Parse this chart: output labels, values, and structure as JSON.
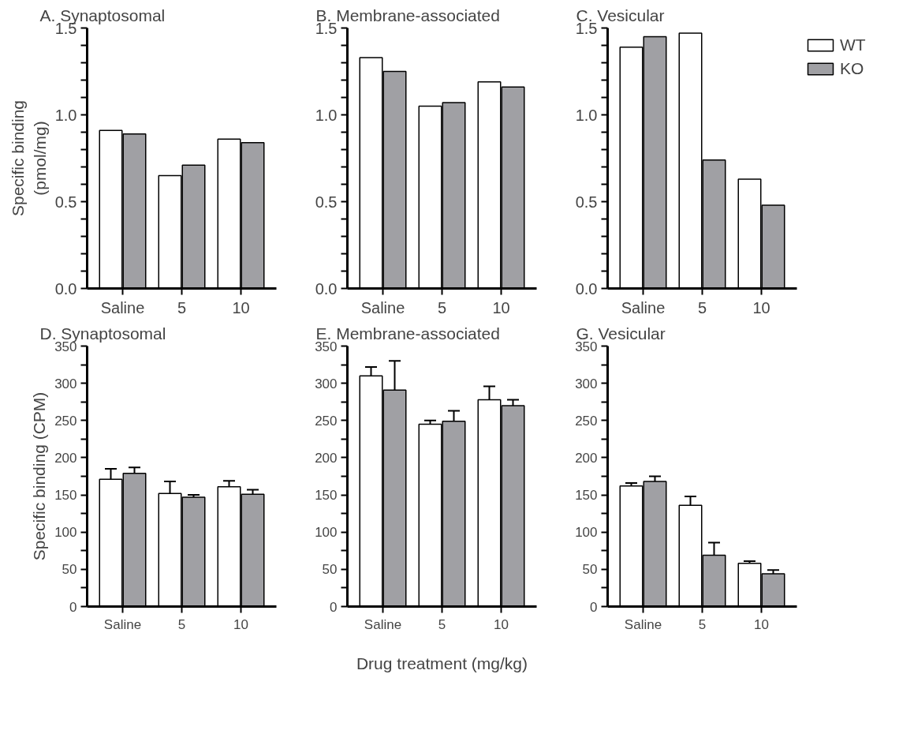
{
  "chart_data": [
    {
      "type": "bar",
      "title": "A. Synaptosomal",
      "ylabel": "Specific binding\n(pmol/mg)",
      "categories": [
        "Saline",
        "5",
        "10"
      ],
      "series": [
        {
          "color": "#ffffff",
          "values": [
            0.91,
            0.65,
            0.86
          ]
        },
        {
          "color": "#a0a0a4",
          "values": [
            0.89,
            0.71,
            0.84
          ]
        }
      ],
      "ylim": [
        0,
        1.5
      ],
      "yticks": [
        {
          "value": 0,
          "label": "0.0"
        },
        {
          "value": 0.1,
          "label": null
        },
        {
          "value": 0.2,
          "label": null
        },
        {
          "value": 0.3,
          "label": null
        },
        {
          "value": 0.4,
          "label": null
        },
        {
          "value": 0.5,
          "label": "0.5"
        },
        {
          "value": 0.6,
          "label": null
        },
        {
          "value": 0.7,
          "label": null
        },
        {
          "value": 0.8,
          "label": null
        },
        {
          "value": 0.9,
          "label": null
        },
        {
          "value": 1,
          "label": "1.0"
        },
        {
          "value": 1.1,
          "label": null
        },
        {
          "value": 1.2,
          "label": null
        },
        {
          "value": 1.3,
          "label": null
        },
        {
          "value": 1.4,
          "label": null
        },
        {
          "value": 1.5,
          "label": "1.5"
        }
      ],
      "grid": false,
      "legend": false
    },
    {
      "type": "bar",
      "title": "B. Membrane-associated",
      "categories": [
        "Saline",
        "5",
        "10"
      ],
      "series": [
        {
          "color": "#ffffff",
          "values": [
            1.33,
            1.05,
            1.19
          ]
        },
        {
          "color": "#a0a0a4",
          "values": [
            1.25,
            1.07,
            1.16
          ]
        }
      ],
      "ylim": [
        0,
        1.5
      ],
      "yticks": [
        {
          "value": 0,
          "label": "0.0"
        },
        {
          "value": 0.1,
          "label": null
        },
        {
          "value": 0.2,
          "label": null
        },
        {
          "value": 0.3,
          "label": null
        },
        {
          "value": 0.4,
          "label": null
        },
        {
          "value": 0.5,
          "label": "0.5"
        },
        {
          "value": 0.6,
          "label": null
        },
        {
          "value": 0.7,
          "label": null
        },
        {
          "value": 0.8,
          "label": null
        },
        {
          "value": 0.9,
          "label": null
        },
        {
          "value": 1,
          "label": "1.0"
        },
        {
          "value": 1.1,
          "label": null
        },
        {
          "value": 1.2,
          "label": null
        },
        {
          "value": 1.3,
          "label": null
        },
        {
          "value": 1.4,
          "label": null
        },
        {
          "value": 1.5,
          "label": "1.5"
        }
      ],
      "grid": false,
      "legend": false
    },
    {
      "type": "bar",
      "title": "C. Vesicular",
      "categories": [
        "Saline",
        "5",
        "10"
      ],
      "series": [
        {
          "name": "WT",
          "color": "#ffffff",
          "values": [
            1.39,
            1.47,
            0.63
          ]
        },
        {
          "name": "KO",
          "color": "#a0a0a4",
          "values": [
            1.45,
            0.74,
            0.48
          ]
        }
      ],
      "ylim": [
        0,
        1.5
      ],
      "yticks": [
        {
          "value": 0,
          "label": "0.0"
        },
        {
          "value": 0.1,
          "label": null
        },
        {
          "value": 0.2,
          "label": null
        },
        {
          "value": 0.3,
          "label": null
        },
        {
          "value": 0.4,
          "label": null
        },
        {
          "value": 0.5,
          "label": "0.5"
        },
        {
          "value": 0.6,
          "label": null
        },
        {
          "value": 0.7,
          "label": null
        },
        {
          "value": 0.8,
          "label": null
        },
        {
          "value": 0.9,
          "label": null
        },
        {
          "value": 1,
          "label": "1.0"
        },
        {
          "value": 1.1,
          "label": null
        },
        {
          "value": 1.2,
          "label": null
        },
        {
          "value": 1.3,
          "label": null
        },
        {
          "value": 1.4,
          "label": null
        },
        {
          "value": 1.5,
          "label": "1.5"
        }
      ],
      "grid": false,
      "legend": "top right"
    },
    {
      "type": "bar",
      "title": "D. Synaptosomal",
      "ylabel": "Specific binding (CPM)",
      "categories": [
        "Saline",
        "5",
        "10"
      ],
      "series": [
        {
          "color": "#ffffff",
          "values": [
            171,
            152,
            161
          ],
          "errors": [
            14,
            16,
            8
          ]
        },
        {
          "color": "#a0a0a4",
          "values": [
            179,
            147,
            151
          ],
          "errors": [
            8,
            3,
            6
          ]
        }
      ],
      "ylim": [
        0,
        350
      ],
      "yticks": [
        0,
        {
          "value": 25,
          "label": null
        },
        50,
        {
          "value": 75,
          "label": null
        },
        100,
        {
          "value": 125,
          "label": null
        },
        150,
        {
          "value": 175,
          "label": null
        },
        200,
        {
          "value": 225,
          "label": null
        },
        250,
        {
          "value": 275,
          "label": null
        },
        300,
        {
          "value": 325,
          "label": null
        },
        350
      ],
      "grid": false,
      "legend": false
    },
    {
      "type": "bar",
      "title": "E. Membrane-associated",
      "xlabel": "Drug treatment (mg/kg)",
      "categories": [
        "Saline",
        "5",
        "10"
      ],
      "series": [
        {
          "color": "#ffffff",
          "values": [
            310,
            245,
            278
          ],
          "errors": [
            12,
            5,
            18
          ]
        },
        {
          "color": "#a0a0a4",
          "values": [
            291,
            249,
            270
          ],
          "errors": [
            39,
            14,
            8
          ]
        }
      ],
      "ylim": [
        0,
        350
      ],
      "yticks": [
        0,
        {
          "value": 25,
          "label": null
        },
        50,
        {
          "value": 75,
          "label": null
        },
        100,
        {
          "value": 125,
          "label": null
        },
        150,
        {
          "value": 175,
          "label": null
        },
        200,
        {
          "value": 225,
          "label": null
        },
        250,
        {
          "value": 275,
          "label": null
        },
        300,
        {
          "value": 325,
          "label": null
        },
        350
      ],
      "grid": false,
      "legend": false
    },
    {
      "type": "bar",
      "title": "G. Vesicular",
      "categories": [
        "Saline",
        "5",
        "10"
      ],
      "series": [
        {
          "color": "#ffffff",
          "values": [
            162,
            136,
            58
          ],
          "errors": [
            4,
            12,
            3
          ]
        },
        {
          "color": "#a0a0a4",
          "values": [
            168,
            69,
            44
          ],
          "errors": [
            7,
            17,
            5
          ]
        }
      ],
      "ylim": [
        0,
        350
      ],
      "yticks": [
        0,
        {
          "value": 25,
          "label": null
        },
        50,
        {
          "value": 75,
          "label": null
        },
        100,
        {
          "value": 125,
          "label": null
        },
        150,
        {
          "value": 175,
          "label": null
        },
        200,
        {
          "value": 225,
          "label": null
        },
        250,
        {
          "value": 275,
          "label": null
        },
        300,
        {
          "value": 325,
          "label": null
        },
        350
      ],
      "grid": false,
      "legend": false
    }
  ]
}
